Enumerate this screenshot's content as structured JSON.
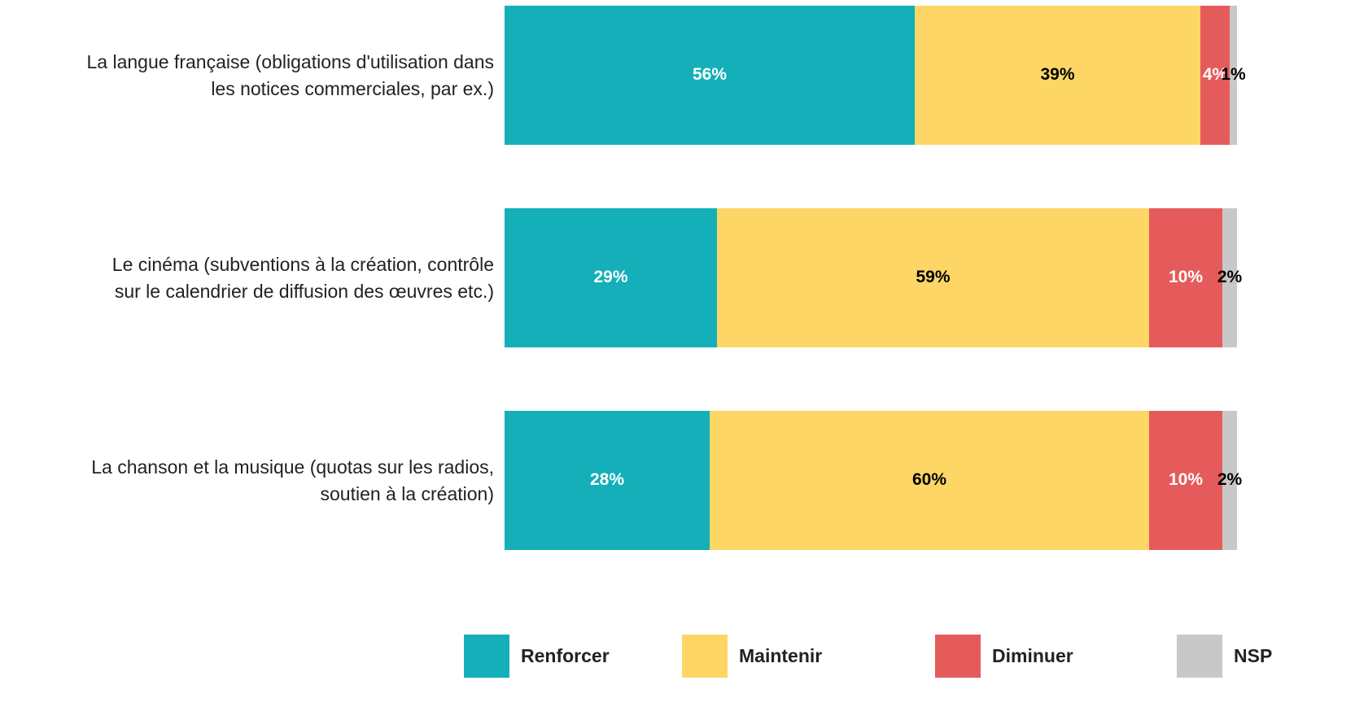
{
  "chart_data": {
    "type": "stacked_barh",
    "categories": [
      "La langue française (obligations d'utilisation dans\nles notices commerciales, par ex.)",
      "Le cinéma (subventions à la création, contrôle\nsur le calendrier de diffusion des œuvres etc.)",
      "La chanson et la musique (quotas sur les radios,\nsoutien à la création)"
    ],
    "series": [
      {
        "name": "Renforcer",
        "color": "#14afb8",
        "label_color": "#ffffff",
        "values": [
          56,
          29,
          28
        ],
        "value_labels": [
          "56%",
          "29%",
          "28%"
        ]
      },
      {
        "name": "Maintenir",
        "color": "#fdd666",
        "label_color": "#000000",
        "values": [
          39,
          59,
          60
        ],
        "value_labels": [
          "39%",
          "59%",
          "60%"
        ]
      },
      {
        "name": "Diminuer",
        "color": "#e55b5b",
        "label_color": "#ffffff",
        "values": [
          4,
          10,
          10
        ],
        "value_labels": [
          "4%",
          "10%",
          "10%"
        ]
      },
      {
        "name": "NSP",
        "color": "#c8c8c8",
        "label_color": "#000000",
        "values": [
          1,
          2,
          2
        ],
        "value_labels": [
          "1%",
          "2%",
          "2%"
        ]
      }
    ],
    "xlim": [
      0,
      100
    ],
    "legend": "bottom"
  }
}
